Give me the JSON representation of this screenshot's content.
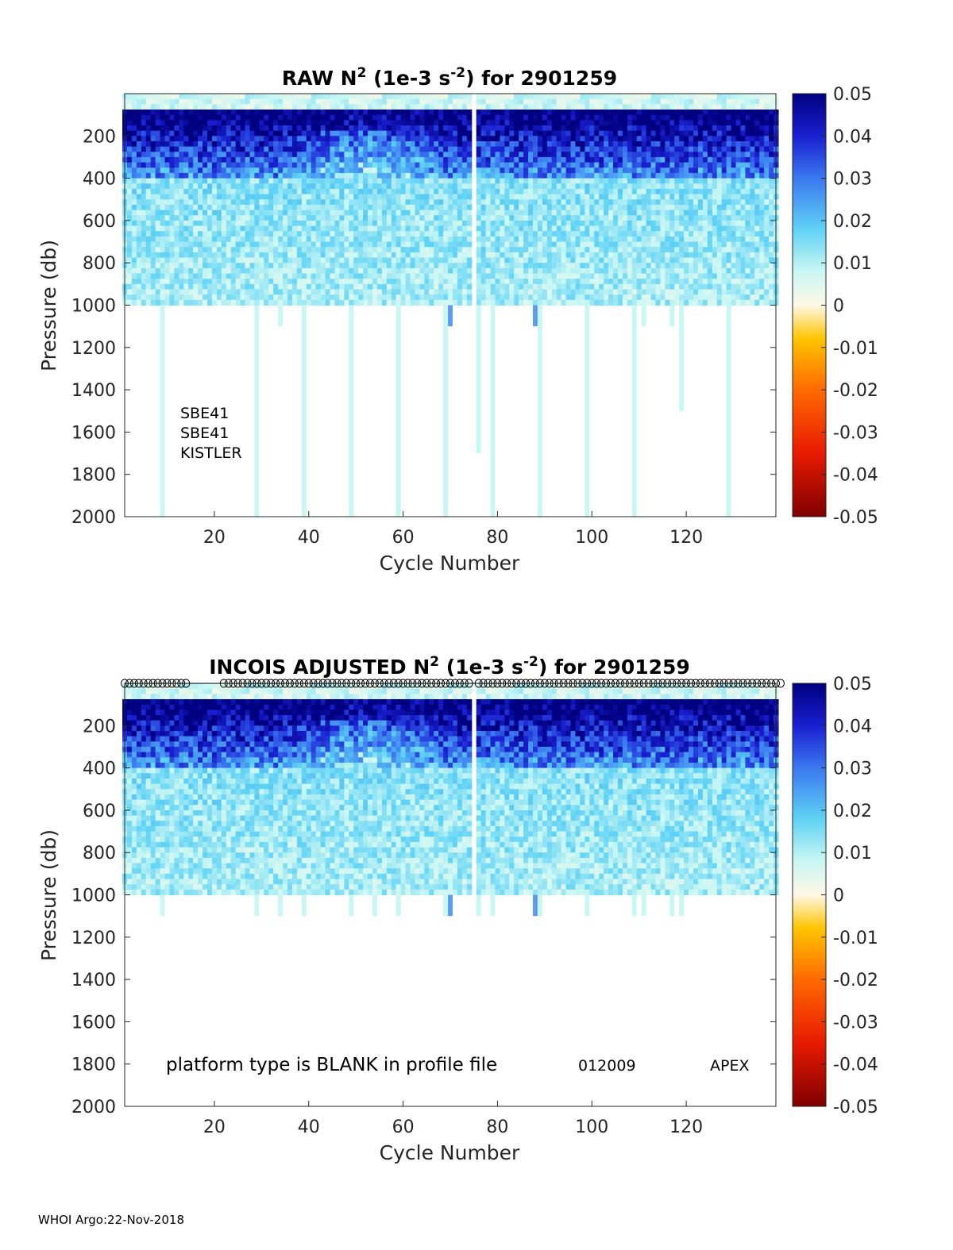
{
  "chart_data": [
    {
      "type": "heatmap",
      "title_prefix": "RAW N",
      "title_sup": "2",
      "title_mid": " (1e-3 s",
      "title_sup2": "-2",
      "title_suffix": ") for 2901259",
      "xlabel": "Cycle Number",
      "ylabel": "Pressure (db)",
      "xlim": [
        1,
        139
      ],
      "ylim": [
        2000,
        0
      ],
      "xticks": [
        20,
        40,
        60,
        80,
        100,
        120
      ],
      "yticks": [
        200,
        400,
        600,
        800,
        1000,
        1200,
        1400,
        1600,
        1800,
        2000
      ],
      "colorbar": {
        "min": -0.05,
        "max": 0.05,
        "ticks": [
          0.05,
          0.04,
          0.03,
          0.02,
          0.01,
          0,
          -0.01,
          -0.02,
          -0.03,
          -0.04,
          -0.05
        ]
      },
      "annotations": [
        "SBE41",
        "SBE41",
        "KISTLER"
      ],
      "profile_max_pressure_db": 1000,
      "missing_cycles": [
        75
      ],
      "deep_profiles": [
        {
          "cycle": 9,
          "max_p": 2000
        },
        {
          "cycle": 29,
          "max_p": 2000
        },
        {
          "cycle": 34,
          "max_p": 1100
        },
        {
          "cycle": 39,
          "max_p": 2000
        },
        {
          "cycle": 49,
          "max_p": 2000
        },
        {
          "cycle": 59,
          "max_p": 2000
        },
        {
          "cycle": 69,
          "max_p": 2000
        },
        {
          "cycle": 70,
          "max_p": 1100
        },
        {
          "cycle": 76,
          "max_p": 1700
        },
        {
          "cycle": 79,
          "max_p": 2000
        },
        {
          "cycle": 88,
          "max_p": 1100
        },
        {
          "cycle": 89,
          "max_p": 2000
        },
        {
          "cycle": 99,
          "max_p": 2000
        },
        {
          "cycle": 109,
          "max_p": 2000
        },
        {
          "cycle": 111,
          "max_p": 1100
        },
        {
          "cycle": 117,
          "max_p": 1100
        },
        {
          "cycle": 119,
          "max_p": 1500
        },
        {
          "cycle": 129,
          "max_p": 2000
        }
      ]
    },
    {
      "type": "heatmap",
      "title_prefix": "INCOIS  ADJUSTED N",
      "title_sup": "2",
      "title_mid": " (1e-3 s",
      "title_sup2": "-2",
      "title_suffix": ") for 2901259",
      "xlabel": "Cycle Number",
      "ylabel": "Pressure (db)",
      "xlim": [
        1,
        139
      ],
      "ylim": [
        2000,
        0
      ],
      "xticks": [
        20,
        40,
        60,
        80,
        100,
        120
      ],
      "yticks": [
        200,
        400,
        600,
        800,
        1000,
        1200,
        1400,
        1600,
        1800,
        2000
      ],
      "colorbar": {
        "min": -0.05,
        "max": 0.05,
        "ticks": [
          0.05,
          0.04,
          0.03,
          0.02,
          0.01,
          0,
          -0.01,
          -0.02,
          -0.03,
          -0.04,
          -0.05
        ]
      },
      "platform_note": "platform type is BLANK in profile file",
      "platform_code": "012009",
      "platform_model": "APEX",
      "profile_max_pressure_db": 1000,
      "missing_cycles": [
        75
      ],
      "qc_marker_cycles_excluded": [
        15,
        16,
        17,
        18,
        19,
        20,
        21
      ],
      "deep_profiles": [
        {
          "cycle": 9,
          "max_p": 1100
        },
        {
          "cycle": 29,
          "max_p": 1100
        },
        {
          "cycle": 34,
          "max_p": 1100
        },
        {
          "cycle": 39,
          "max_p": 1100
        },
        {
          "cycle": 49,
          "max_p": 1100
        },
        {
          "cycle": 54,
          "max_p": 1100
        },
        {
          "cycle": 59,
          "max_p": 1100
        },
        {
          "cycle": 69,
          "max_p": 1100
        },
        {
          "cycle": 70,
          "max_p": 1100
        },
        {
          "cycle": 76,
          "max_p": 1100
        },
        {
          "cycle": 79,
          "max_p": 1100
        },
        {
          "cycle": 88,
          "max_p": 1100
        },
        {
          "cycle": 89,
          "max_p": 1100
        },
        {
          "cycle": 99,
          "max_p": 1100
        },
        {
          "cycle": 109,
          "max_p": 1100
        },
        {
          "cycle": 111,
          "max_p": 1100
        },
        {
          "cycle": 117,
          "max_p": 1100
        },
        {
          "cycle": 119,
          "max_p": 1100
        }
      ]
    }
  ],
  "footer": "WHOI Argo:22-Nov-2018"
}
